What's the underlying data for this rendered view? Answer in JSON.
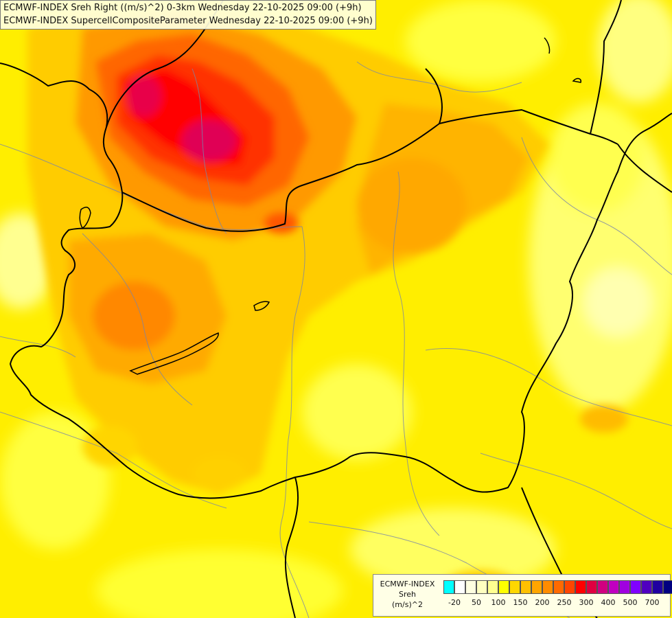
{
  "map_header": {
    "line1": "ECMWF-INDEX Sreh Right ((m/s)^2) 0-3km Wednesday 22-10-2025 09:00 (+9h)",
    "line2": "ECMWF-INDEX SupercellCompositeParameter Wednesday 22-10-2025 09:00 (+9h)"
  },
  "legend": {
    "model": "ECMWF-INDEX",
    "parameter": "Sreh",
    "unit": "(m/s)^2",
    "colors": [
      "#00ffff",
      "#ffffff",
      "#ffffe0",
      "#ffffc0",
      "#ffff90",
      "#ffff00",
      "#ffd700",
      "#ffc000",
      "#ffa500",
      "#ff8c00",
      "#ff6a00",
      "#ff4500",
      "#ff0000",
      "#e00040",
      "#d00080",
      "#c000c0",
      "#a000e0",
      "#8000ff",
      "#5000c0",
      "#2000a0",
      "#000080"
    ],
    "ticks": [
      "-20",
      "50",
      "100",
      "150",
      "200",
      "250",
      "300",
      "400",
      "500",
      "700"
    ]
  }
}
